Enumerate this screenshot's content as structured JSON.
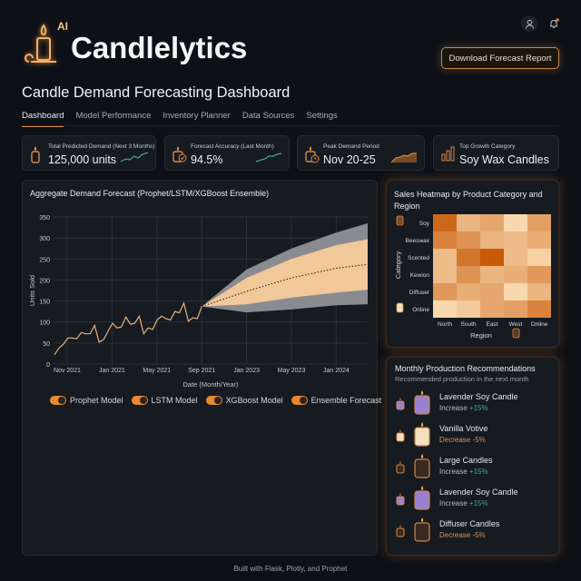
{
  "brand": {
    "name": "Candlelytics",
    "badge": "AI"
  },
  "header": {
    "download_label": "Download Forecast Report",
    "notification_dot_color": "#e8892f"
  },
  "page_title": "Candle Demand Forecasting Dashboard",
  "tabs": [
    {
      "label": "Dashboard",
      "active": true
    },
    {
      "label": "Model Performance"
    },
    {
      "label": "Inventory Planner"
    },
    {
      "label": "Data Sources"
    },
    {
      "label": "Settings"
    }
  ],
  "kpis": [
    {
      "label": "Total Predicted Demand (Next 3 Months)",
      "value": "125,000 units",
      "icon": "candle-icon",
      "spark_color": "#3fb27f"
    },
    {
      "label": "Forecast Accuracy (Last Month)",
      "value": "94.5%",
      "icon": "candle-check-icon",
      "spark_color": "#3fb27f"
    },
    {
      "label": "Peak Demand Period",
      "value": "Nov 20-25",
      "icon": "candle-clock-icon",
      "spark_color": "#d98a48"
    },
    {
      "label": "Top Growth Category",
      "value": "Soy Wax Candles",
      "icon": "bar-chart-icon",
      "spark_color": "#d98a48"
    }
  ],
  "chart_data": [
    {
      "type": "area",
      "title": "Aggregate Demand Forecast (Prophet/LSTM/XGBoost Ensemble)",
      "xlabel": "Date (Month/Year)",
      "ylabel": "Units Sold",
      "ylim": [
        0,
        350
      ],
      "yticks": [
        0,
        50,
        100,
        150,
        200,
        250,
        300,
        350
      ],
      "xticks": [
        "Nov 2021",
        "Jan 2021",
        "May 2021",
        "Sep 2021",
        "Jan 2023",
        "May 2023",
        "Jan 2024"
      ],
      "grid": true,
      "historical": [
        22,
        38,
        47,
        62,
        62,
        60,
        75,
        72,
        72,
        92,
        52,
        58,
        78,
        97,
        86,
        88,
        112,
        95,
        97,
        114,
        72,
        86,
        82,
        105,
        114,
        108,
        105,
        125,
        122,
        145,
        102,
        110,
        108,
        137
      ],
      "forecast_x": [
        "Sep 2021",
        "Jan 2023",
        "May 2023",
        "Jan 2024",
        "end"
      ],
      "forecast_mean": [
        137,
        173,
        205,
        228,
        237
      ],
      "inner_upper": [
        137,
        205,
        250,
        283,
        297
      ],
      "inner_lower": [
        137,
        142,
        158,
        170,
        177
      ],
      "outer_upper": [
        137,
        225,
        275,
        313,
        335
      ],
      "outer_lower": [
        137,
        123,
        130,
        140,
        142
      ],
      "legend": [
        "Prophet Model",
        "LSTM Model",
        "XGBoost Model",
        "Ensemble Forecast"
      ],
      "colors": {
        "line": "#e8b27a",
        "inner": "#f0c899",
        "outer": "#8a8b90",
        "mean": "#4a3020"
      }
    },
    {
      "type": "heatmap",
      "title": "Sales Heatmap by Product Category and Region",
      "xlabel": "Region",
      "ylabel": "Category",
      "columns": [
        "North",
        "South",
        "East",
        "West",
        "Online"
      ],
      "rows": [
        "Soy",
        "Beeswax",
        "Scented",
        "Kewion",
        "Diffuser",
        "Online"
      ],
      "values": [
        [
          0.9,
          0.35,
          0.45,
          0.1,
          0.5
        ],
        [
          0.7,
          0.6,
          0.35,
          0.3,
          0.4
        ],
        [
          0.3,
          0.8,
          1.0,
          0.3,
          0.15
        ],
        [
          0.3,
          0.6,
          0.35,
          0.4,
          0.55
        ],
        [
          0.55,
          0.4,
          0.45,
          0.1,
          0.35
        ],
        [
          0.1,
          0.2,
          0.45,
          0.5,
          0.7
        ]
      ],
      "colors": {
        "low": "#fde6c0",
        "high": "#c85a08"
      }
    }
  ],
  "recommendations": {
    "title": "Monthly Production Recommendations",
    "subtitle": "Recommended production in the next month",
    "items": [
      {
        "name": "Lavender Soy Candle",
        "change": "Increase",
        "pct": "+15%",
        "wax": "#9a80d0",
        "dir": "up"
      },
      {
        "name": "Vanilla Votive",
        "change": "Decrease",
        "pct": "-5%",
        "wax": "#f5dfbf",
        "dir": "down"
      },
      {
        "name": "Large Candles",
        "change": "Increase",
        "pct": "+15%",
        "wax": "#3a2a20",
        "dir": "up"
      },
      {
        "name": "Lavender Soy Candle",
        "change": "Increase",
        "pct": "+15%",
        "wax": "#9a80d0",
        "dir": "up"
      },
      {
        "name": "Diffuser Candles",
        "change": "Decrease",
        "pct": "-5%",
        "wax": "#3a2a20",
        "dir": "down"
      }
    ]
  },
  "footer": "Built with Flask, Plotly, and Prophet"
}
